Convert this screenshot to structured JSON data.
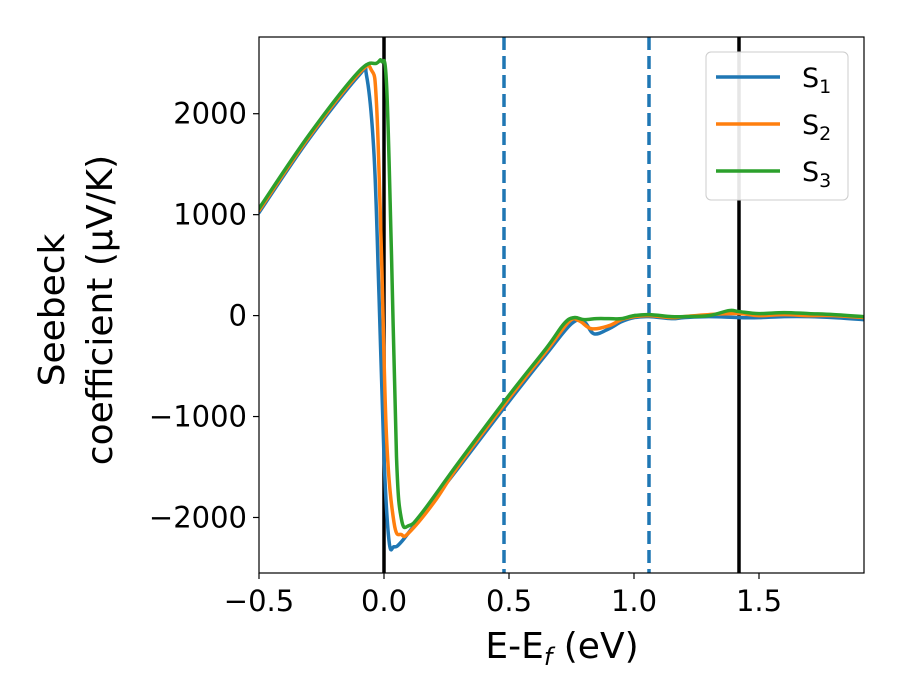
{
  "chart_data": {
    "type": "line",
    "xlabel_main": "E-E",
    "xlabel_sub": "f",
    "xlabel_tail": " (eV)",
    "ylabel_line1": "Seebeck",
    "ylabel_line2": "coefficient  (μV/K)",
    "xlim": [
      -0.5,
      1.92
    ],
    "ylim": [
      -2550,
      2760
    ],
    "xticks": [
      -0.5,
      0.0,
      0.5,
      1.0,
      1.5
    ],
    "xtick_labels": [
      "−0.5",
      "0.0",
      "0.5",
      "1.0",
      "1.5"
    ],
    "yticks": [
      -2000,
      -1000,
      0,
      1000,
      2000
    ],
    "ytick_labels": [
      "−2000",
      "−1000",
      "0",
      "1000",
      "2000"
    ],
    "grid": false,
    "legend_position": "top-right",
    "vertical_lines": [
      {
        "x": 0.0,
        "style": "solid",
        "color": "#000000"
      },
      {
        "x": 1.42,
        "style": "solid",
        "color": "#000000"
      },
      {
        "x": 0.48,
        "style": "dashed",
        "color": "#1f77b4"
      },
      {
        "x": 1.06,
        "style": "dashed",
        "color": "#1f77b4"
      }
    ],
    "series": [
      {
        "name": "S",
        "sub": "1",
        "color": "#1f77b4",
        "points": [
          [
            -0.5,
            1020
          ],
          [
            -0.3,
            1750
          ],
          [
            -0.1,
            2380
          ],
          [
            -0.07,
            2380
          ],
          [
            -0.04,
            1600
          ],
          [
            -0.02,
            200
          ],
          [
            0.0,
            -1400
          ],
          [
            0.02,
            -2230
          ],
          [
            0.04,
            -2290
          ],
          [
            0.07,
            -2240
          ],
          [
            0.15,
            -1980
          ],
          [
            0.3,
            -1500
          ],
          [
            0.5,
            -850
          ],
          [
            0.65,
            -380
          ],
          [
            0.75,
            -80
          ],
          [
            0.8,
            -60
          ],
          [
            0.84,
            -180
          ],
          [
            0.9,
            -130
          ],
          [
            0.95,
            -60
          ],
          [
            1.0,
            -20
          ],
          [
            1.06,
            -10
          ],
          [
            1.15,
            -30
          ],
          [
            1.2,
            -20
          ],
          [
            1.3,
            -10
          ],
          [
            1.42,
            -20
          ],
          [
            1.5,
            -20
          ],
          [
            1.6,
            -10
          ],
          [
            1.7,
            -10
          ],
          [
            1.8,
            -20
          ],
          [
            1.92,
            -40
          ]
        ]
      },
      {
        "name": "S",
        "sub": "2",
        "color": "#ff7f0e",
        "points": [
          [
            -0.5,
            1040
          ],
          [
            -0.3,
            1770
          ],
          [
            -0.1,
            2400
          ],
          [
            -0.05,
            2430
          ],
          [
            -0.03,
            2100
          ],
          [
            -0.01,
            600
          ],
          [
            0.01,
            -1200
          ],
          [
            0.04,
            -2050
          ],
          [
            0.07,
            -2170
          ],
          [
            0.1,
            -2150
          ],
          [
            0.2,
            -1850
          ],
          [
            0.3,
            -1480
          ],
          [
            0.5,
            -820
          ],
          [
            0.65,
            -350
          ],
          [
            0.74,
            -60
          ],
          [
            0.78,
            -50
          ],
          [
            0.83,
            -130
          ],
          [
            0.9,
            -100
          ],
          [
            0.95,
            -40
          ],
          [
            1.0,
            -10
          ],
          [
            1.06,
            0
          ],
          [
            1.15,
            -20
          ],
          [
            1.2,
            -10
          ],
          [
            1.3,
            10
          ],
          [
            1.42,
            20
          ],
          [
            1.5,
            0
          ],
          [
            1.6,
            10
          ],
          [
            1.7,
            0
          ],
          [
            1.8,
            0
          ],
          [
            1.92,
            -20
          ]
        ]
      },
      {
        "name": "S",
        "sub": "3",
        "color": "#2ca02c",
        "points": [
          [
            -0.5,
            1060
          ],
          [
            -0.3,
            1790
          ],
          [
            -0.1,
            2420
          ],
          [
            -0.03,
            2500
          ],
          [
            -0.01,
            2520
          ],
          [
            0.01,
            2300
          ],
          [
            0.03,
            600
          ],
          [
            0.05,
            -1400
          ],
          [
            0.07,
            -2020
          ],
          [
            0.1,
            -2080
          ],
          [
            0.15,
            -1960
          ],
          [
            0.3,
            -1450
          ],
          [
            0.5,
            -790
          ],
          [
            0.65,
            -320
          ],
          [
            0.72,
            -80
          ],
          [
            0.76,
            -20
          ],
          [
            0.8,
            -40
          ],
          [
            0.85,
            -30
          ],
          [
            0.9,
            -30
          ],
          [
            0.95,
            -30
          ],
          [
            1.0,
            0
          ],
          [
            1.06,
            10
          ],
          [
            1.15,
            -10
          ],
          [
            1.2,
            -10
          ],
          [
            1.3,
            0
          ],
          [
            1.38,
            50
          ],
          [
            1.42,
            40
          ],
          [
            1.5,
            20
          ],
          [
            1.6,
            30
          ],
          [
            1.7,
            20
          ],
          [
            1.8,
            10
          ],
          [
            1.92,
            -10
          ]
        ]
      }
    ]
  }
}
